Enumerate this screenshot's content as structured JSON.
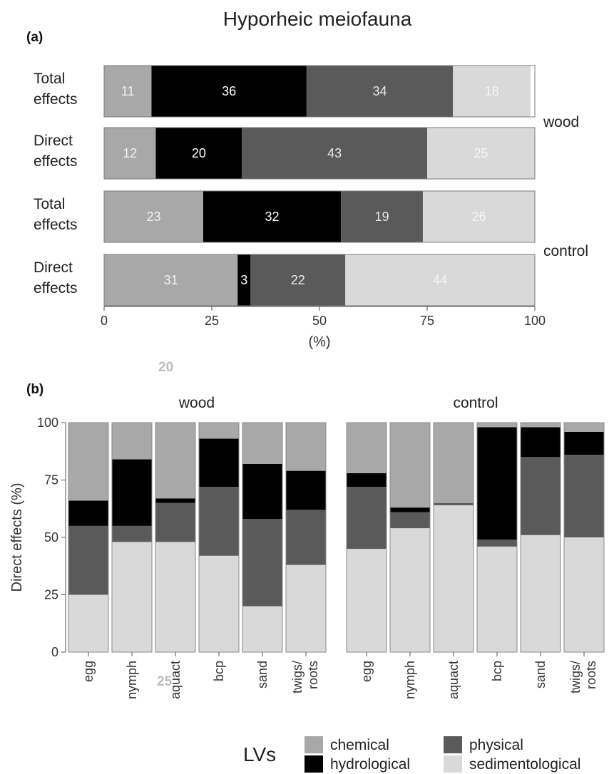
{
  "title": "Hyporheic meiofauna",
  "colors": {
    "chemical": "#a8a8a8",
    "hydrological": "#000000",
    "physical": "#5a5a5a",
    "sedimentological": "#d9d9d9"
  },
  "legend": {
    "title": "LVs",
    "items": [
      "chemical",
      "hydrological",
      "physical",
      "sedimentological"
    ]
  },
  "stray_labels": [
    "20",
    "25"
  ],
  "chart_data": [
    {
      "panel": "(a)",
      "type": "bar",
      "orientation": "horizontal",
      "stacked": true,
      "xlabel": "(%)",
      "xlim": [
        0,
        100
      ],
      "xticks": [
        "0",
        "25",
        "50",
        "75",
        "100"
      ],
      "series_order": [
        "chemical",
        "hydrological",
        "physical",
        "sedimentological"
      ],
      "groups": [
        {
          "name": "wood",
          "rows": [
            {
              "label": [
                "Total",
                "effects"
              ],
              "values": [
                11,
                36,
                34,
                18
              ],
              "labels": [
                "11",
                "36",
                "34",
                "18"
              ]
            },
            {
              "label": [
                "Direct",
                "effects"
              ],
              "values": [
                12,
                20,
                43,
                25
              ],
              "labels": [
                "12",
                "20",
                "43",
                "25"
              ]
            }
          ]
        },
        {
          "name": "control",
          "rows": [
            {
              "label": [
                "Total",
                "effects"
              ],
              "values": [
                23,
                32,
                19,
                26
              ],
              "labels": [
                "23",
                "32",
                "19",
                "26"
              ]
            },
            {
              "label": [
                "Direct",
                "effects"
              ],
              "values": [
                31,
                3,
                22,
                44
              ],
              "labels": [
                "31",
                "3",
                "22",
                "44"
              ]
            }
          ]
        }
      ]
    },
    {
      "panel": "(b)",
      "type": "bar",
      "stacked": true,
      "ylabel": "Direct effects (%)",
      "ylim": [
        0,
        100
      ],
      "yticks": [
        "0",
        "25",
        "50",
        "75",
        "100"
      ],
      "stack_order_bottom_to_top": [
        "sedimentological",
        "physical",
        "hydrological",
        "chemical"
      ],
      "facets": [
        {
          "name": "wood",
          "categories": [
            "egg",
            "nymph",
            "aquact",
            "bcp",
            "sand",
            "twigs/ roots"
          ],
          "sedimentological": [
            25,
            48,
            48,
            42,
            20,
            38
          ],
          "physical": [
            30,
            7,
            17,
            30,
            38,
            24
          ],
          "hydrological": [
            11,
            29,
            2,
            21,
            24,
            17
          ],
          "chemical": [
            34,
            16,
            33,
            7,
            18,
            21
          ]
        },
        {
          "name": "control",
          "categories": [
            "egg",
            "nymph",
            "aquact",
            "bcp",
            "sand",
            "twigs/ roots"
          ],
          "sedimentological": [
            45,
            54,
            64,
            46,
            51,
            50
          ],
          "physical": [
            27,
            7,
            1,
            3,
            34,
            36
          ],
          "hydrological": [
            6,
            2,
            0,
            49,
            13,
            10
          ],
          "chemical": [
            22,
            37,
            35,
            2,
            2,
            4
          ]
        }
      ]
    }
  ]
}
